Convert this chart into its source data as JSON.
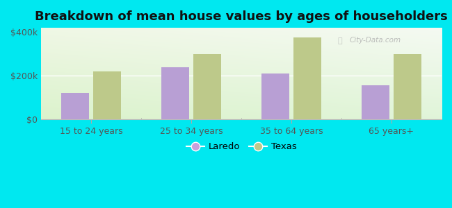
{
  "title": "Breakdown of mean house values by ages of householders",
  "categories": [
    "15 to 24 years",
    "25 to 34 years",
    "35 to 64 years",
    "65 years+"
  ],
  "laredo_values": [
    120000,
    240000,
    210000,
    155000
  ],
  "texas_values": [
    220000,
    300000,
    375000,
    300000
  ],
  "laredo_color": "#b89fd4",
  "texas_color": "#bdc98a",
  "background_color": "#00e8f0",
  "ylim": [
    0,
    420000
  ],
  "yticks": [
    0,
    200000,
    400000
  ],
  "ytick_labels": [
    "$0",
    "$200k",
    "$400k"
  ],
  "title_fontsize": 13,
  "legend_laredo_label": "Laredo",
  "legend_texas_label": "Texas",
  "legend_laredo_color": "#c9a0dc",
  "legend_texas_color": "#bdc98a",
  "bar_width": 0.28,
  "watermark": "City-Data.com"
}
